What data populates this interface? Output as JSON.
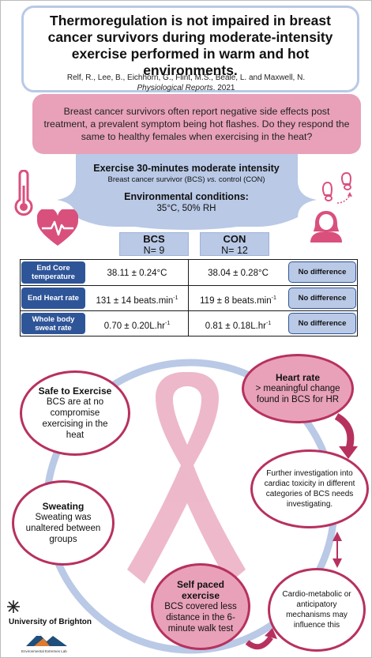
{
  "title": "Thermoregulation is not impaired in breast cancer survivors during moderate-intensity exercise performed in warm and hot environments.",
  "authors": "Relf, R., Lee, B., Eichhorn, G., Flint, M.S., Beale, L. and Maxwell, N.",
  "journal_name": "Physiological Reports",
  "journal_year": ". 2021",
  "question": "Breast cancer survivors often report negative side effects post treatment, a prevalent symptom being hot flashes. Do they respond the same to healthy females when exercising in the heat?",
  "exercise": {
    "title": "Exercise 30-minutes moderate intensity",
    "subtitle_pre": "Breast cancer survivor (BCS) ",
    "subtitle_vs": "vs.",
    "subtitle_post": " control (CON)",
    "env_title": "Environmental conditions:",
    "env_value": "35°C, 50% RH"
  },
  "groups": [
    {
      "name": "BCS",
      "n": "N= 9"
    },
    {
      "name": "CON",
      "n": "N= 12"
    }
  ],
  "table": {
    "rows": [
      {
        "label": "End Core temperature",
        "bcs": "38.11 ± 0.24°C",
        "con": "38.04 ± 0.28°C",
        "unit_sup": "",
        "result": "No difference"
      },
      {
        "label": "End Heart rate",
        "bcs": "131 ± 14 beats.min",
        "con": "119 ± 8 beats.min",
        "unit_sup": "-1",
        "result": "No difference"
      },
      {
        "label": "Whole body sweat rate",
        "bcs": "0.70 ± 0.20L.hr",
        "con": "0.81 ± 0.18L.hr",
        "unit_sup": "-1",
        "result": "No difference"
      }
    ]
  },
  "findings": {
    "safe": {
      "title": "Safe to Exercise",
      "body": "BCS are at no compromise exercising in the heat"
    },
    "heart": {
      "title": "Heart rate",
      "body": "> meaningful change found in BCS for HR"
    },
    "further": {
      "body": "Further investigation into cardiac toxicity in different categories of BCS needs investigating."
    },
    "sweating": {
      "title": "Sweating",
      "body": "Sweating was unaltered between groups"
    },
    "selfpaced": {
      "title": "Self paced exercise",
      "body": "BCS covered less distance in the 6-minute walk test"
    },
    "cardio": {
      "body": "Cardio-metabolic or anticipatory mechanisms may influence this"
    }
  },
  "logo": {
    "university": "University of Brighton",
    "lab": "Environmental Extremes Lab"
  },
  "colors": {
    "pink": "#e8a1b9",
    "dark_pink": "#b7315e",
    "light_blue": "#b9c9e6",
    "navy": "#2f5599",
    "icon_pink": "#d9507d"
  },
  "icons": [
    "thermometer-icon",
    "heart-rate-icon",
    "footprints-icon",
    "female-avatar-icon",
    "breast-cancer-ribbon-icon",
    "arrow-icon",
    "star-logo-icon",
    "mountain-logo-icon"
  ]
}
